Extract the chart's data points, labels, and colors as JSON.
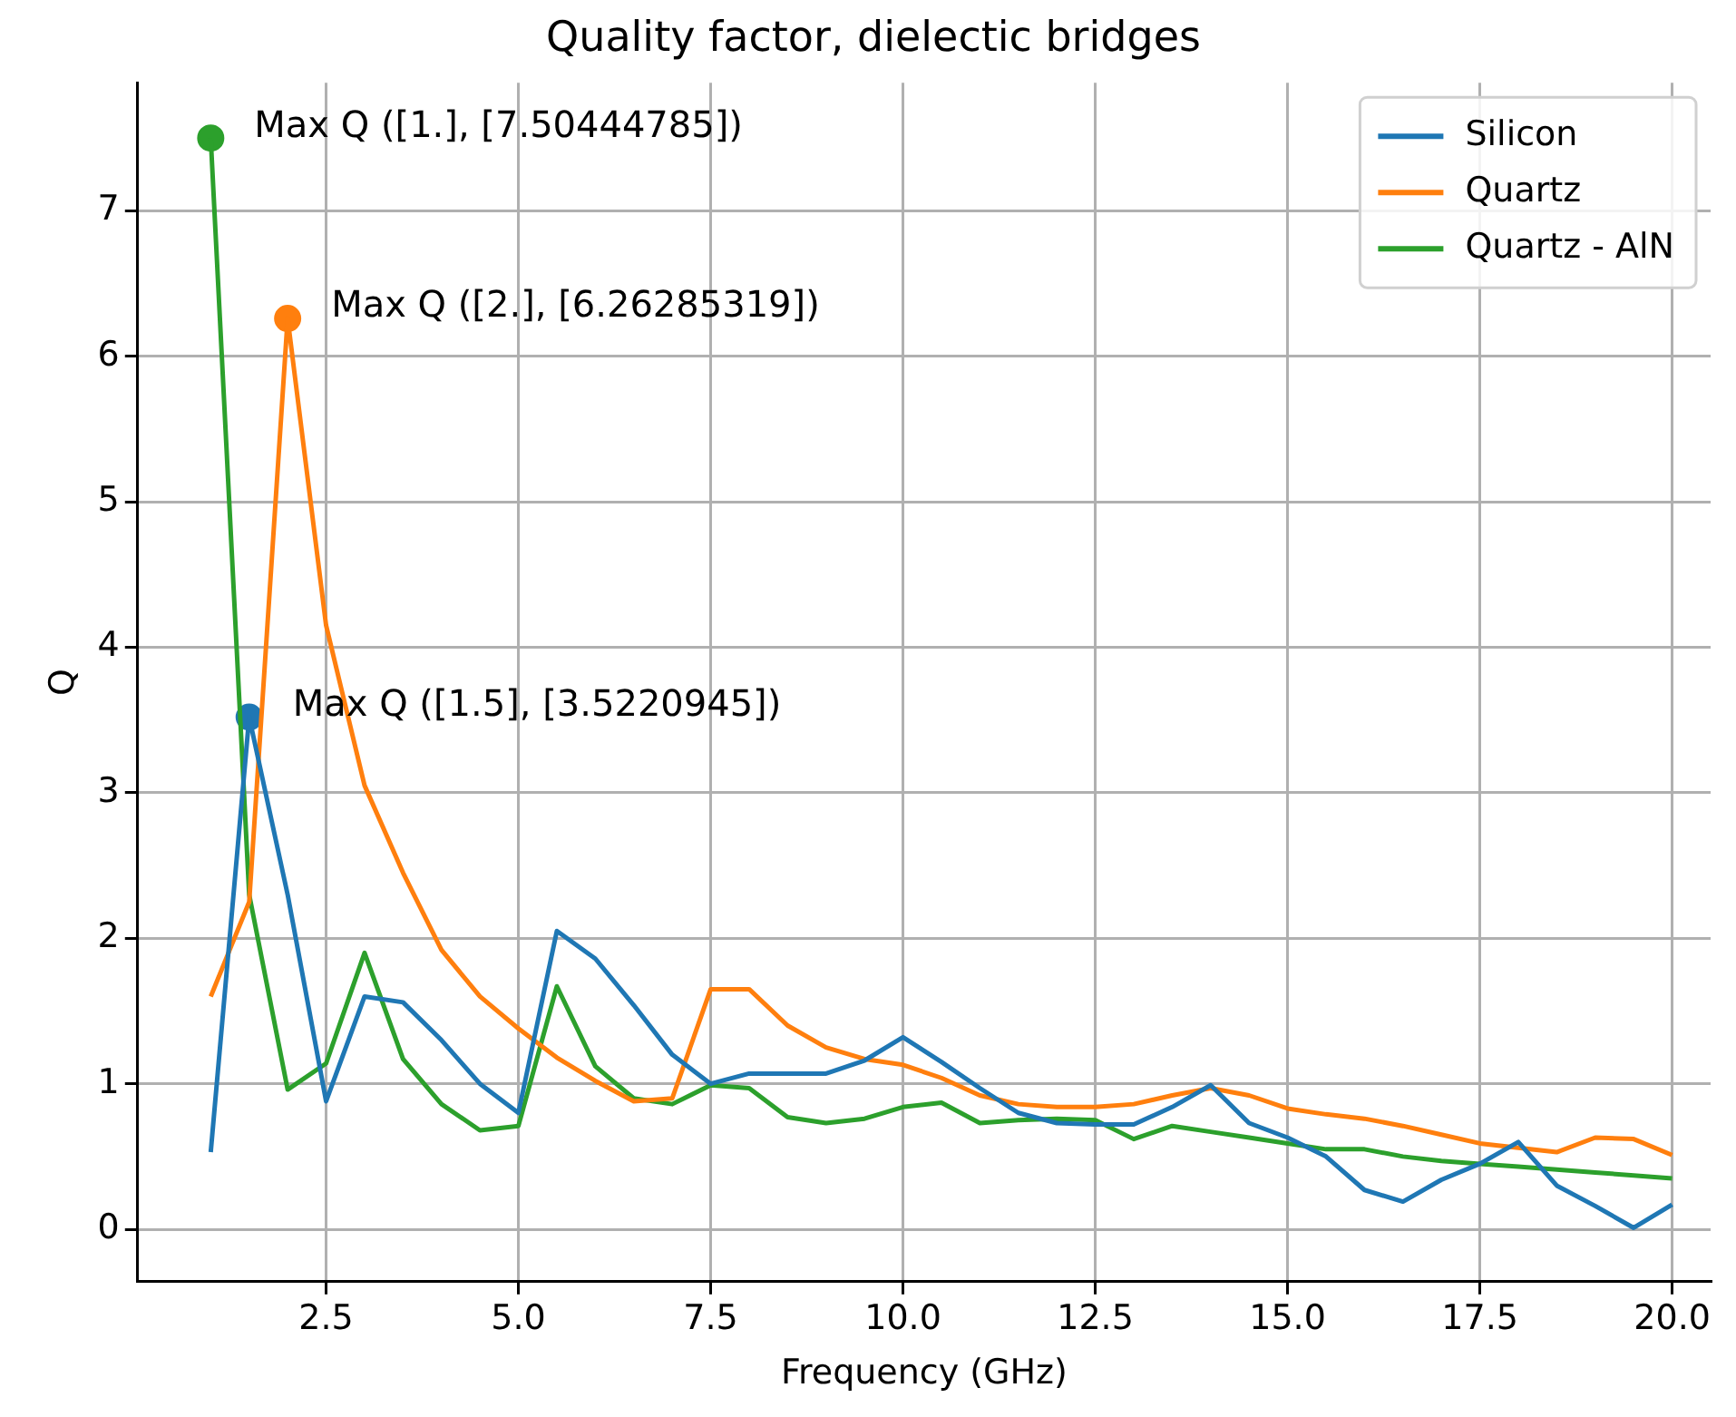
{
  "chart_data": {
    "type": "line",
    "title": "Quality factor, dielectic bridges",
    "xlabel": "Frequency (GHz)",
    "ylabel": "Q",
    "x": [
      1,
      1.5,
      2,
      2.5,
      3,
      3.5,
      4,
      4.5,
      5,
      5.5,
      6,
      6.5,
      7,
      7.5,
      8,
      8.5,
      9,
      9.5,
      10,
      10.5,
      11,
      11.5,
      12,
      12.5,
      13,
      13.5,
      14,
      14.5,
      15,
      15.5,
      16,
      16.5,
      17,
      17.5,
      18,
      18.5,
      19,
      19.5,
      20
    ],
    "series": [
      {
        "name": "Silicon",
        "color": "#1f77b4",
        "values": [
          0.53,
          3.52,
          2.3,
          0.88,
          1.6,
          1.56,
          1.3,
          1.0,
          0.8,
          2.05,
          1.86,
          1.54,
          1.2,
          1.0,
          1.07,
          1.07,
          1.07,
          1.16,
          1.32,
          1.15,
          0.97,
          0.8,
          0.73,
          0.72,
          0.72,
          0.84,
          0.99,
          0.73,
          0.63,
          0.5,
          0.27,
          0.19,
          0.34,
          0.45,
          0.6,
          0.3,
          0.16,
          0.01,
          0.17
        ]
      },
      {
        "name": "Quartz",
        "color": "#ff7f0e",
        "values": [
          1.6,
          2.25,
          6.26,
          4.15,
          3.05,
          2.45,
          1.92,
          1.6,
          1.38,
          1.18,
          1.02,
          0.88,
          0.9,
          1.65,
          1.65,
          1.4,
          1.25,
          1.17,
          1.13,
          1.04,
          0.92,
          0.86,
          0.84,
          0.84,
          0.86,
          0.92,
          0.97,
          0.92,
          0.83,
          0.79,
          0.76,
          0.71,
          0.65,
          0.59,
          0.56,
          0.53,
          0.63,
          0.62,
          0.51
        ]
      },
      {
        "name": "Quartz - AlN",
        "color": "#2ca02c",
        "values": [
          7.5,
          2.3,
          0.96,
          1.14,
          1.9,
          1.17,
          0.86,
          0.68,
          0.71,
          1.67,
          1.12,
          0.9,
          0.86,
          0.99,
          0.97,
          0.77,
          0.73,
          0.76,
          0.84,
          0.87,
          0.73,
          0.75,
          0.76,
          0.75,
          0.62,
          0.71,
          0.67,
          0.63,
          0.59,
          0.55,
          0.55,
          0.5,
          0.47,
          0.45,
          0.43,
          0.41,
          0.39,
          0.37,
          0.35
        ]
      },
      {
        "type": "scatter",
        "marker": "circle",
        "color": "#1f77b4",
        "x": [
          1.5
        ],
        "values": [
          3.52
        ]
      },
      {
        "type": "scatter",
        "marker": "circle",
        "color": "#ff7f0e",
        "x": [
          2
        ],
        "values": [
          6.26
        ]
      },
      {
        "type": "scatter",
        "marker": "circle",
        "color": "#2ca02c",
        "x": [
          1
        ],
        "values": [
          7.5
        ]
      }
    ],
    "annotations": [
      {
        "text": "Max Q ([1.5], [3.5220945])",
        "x": 1.5,
        "y": 3.52
      },
      {
        "text": "Max Q ([2.], [6.26285319])",
        "x": 2,
        "y": 6.26
      },
      {
        "text": "Max Q ([1.], [7.50444785])",
        "x": 1,
        "y": 7.5
      }
    ],
    "xlim": [
      0.05,
      20.5
    ],
    "xticks": [
      {
        "value": 2.5,
        "label": "2.5"
      },
      {
        "value": 5,
        "label": "5.0"
      },
      {
        "value": 7.5,
        "label": "7.5"
      },
      {
        "value": 10,
        "label": "10.0"
      },
      {
        "value": 12.5,
        "label": "12.5"
      },
      {
        "value": 15,
        "label": "15.0"
      },
      {
        "value": 17.5,
        "label": "17.5"
      },
      {
        "value": 20,
        "label": "20.0"
      }
    ],
    "ylim": [
      -0.36,
      7.88
    ],
    "yticks": [
      0,
      1,
      2,
      3,
      4,
      5,
      6,
      7
    ],
    "grid": true,
    "legend": "top right"
  }
}
